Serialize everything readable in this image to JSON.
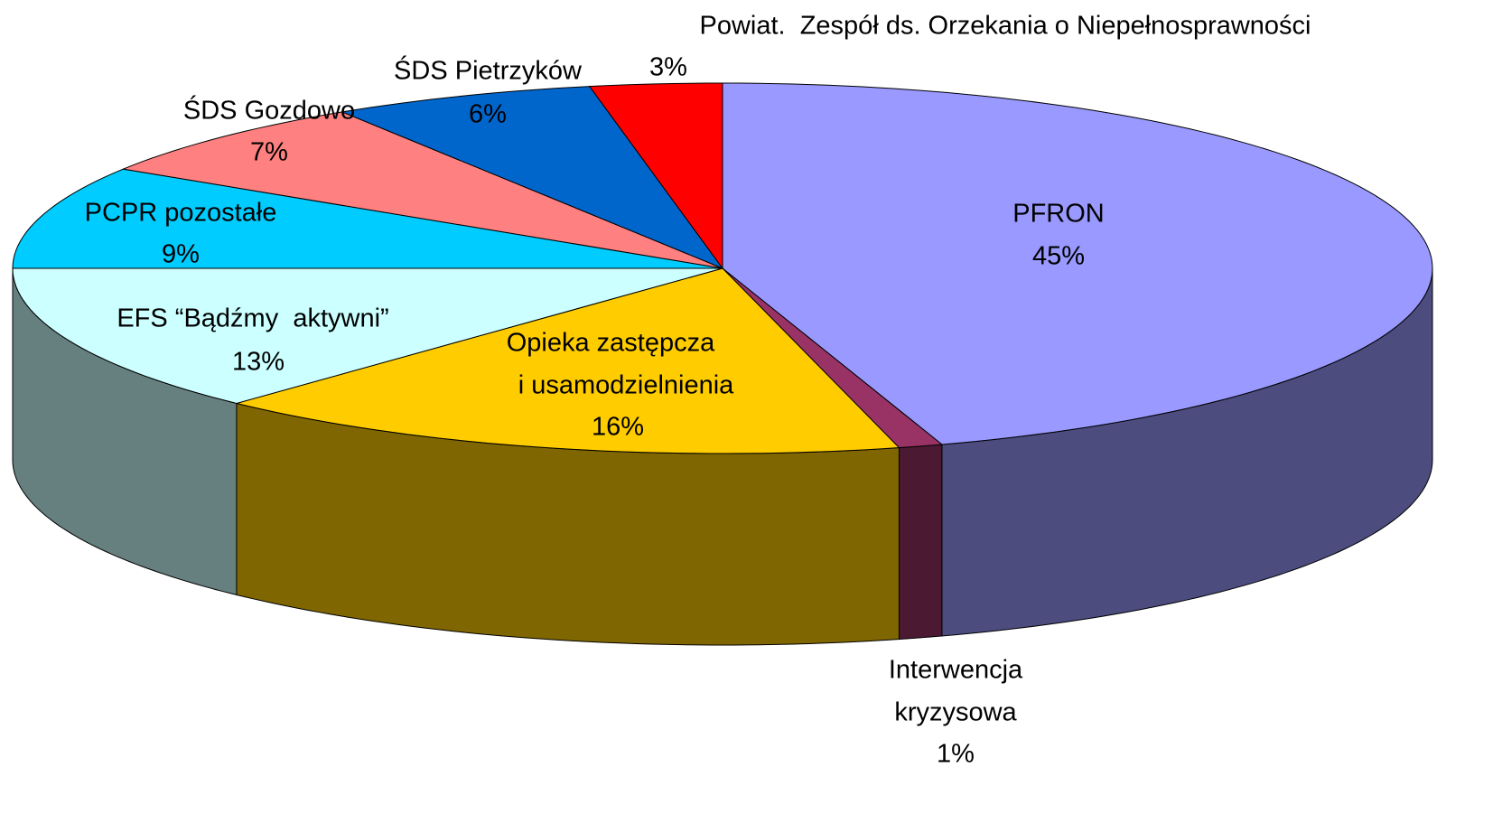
{
  "chart_data": {
    "type": "pie",
    "categories": [
      [
        "PFRON"
      ],
      [
        "Interwencja",
        "kryzysowa"
      ],
      [
        "Opieka zastępcza",
        " i usamodzielnienia"
      ],
      [
        "EFS “Bądźmy  aktywni”"
      ],
      [
        "PCPR pozostałe"
      ],
      [
        "ŚDS Gozdowo"
      ],
      [
        "ŚDS Pietrzyków"
      ],
      [
        "Powiat.  Zespół ds. Orzekania o Niepełnosprawności"
      ]
    ],
    "values": [
      45,
      1,
      16,
      13,
      9,
      7,
      6,
      3
    ],
    "value_labels": [
      "45%",
      "1%",
      "16%",
      "13%",
      "9%",
      "7%",
      "6%",
      "3%"
    ],
    "colors": [
      "#9999ff",
      "#993366",
      "#ffcc00",
      "#ccffff",
      "#00ccff",
      "#ff8080",
      "#0066cc",
      "#ff0000"
    ]
  }
}
